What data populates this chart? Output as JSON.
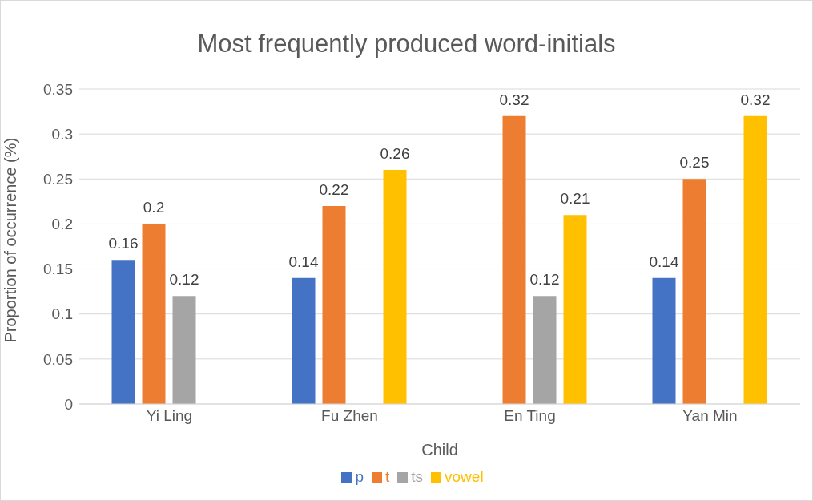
{
  "chart_data": {
    "type": "bar",
    "title": "Most frequently produced word-initials",
    "xlabel": "Child",
    "ylabel": "Proportion of occurrence (%)",
    "categories": [
      "Yi Ling",
      "Fu Zhen",
      "En Ting",
      "Yan Min"
    ],
    "series": [
      {
        "name": "p",
        "color": "#4472c4",
        "values": [
          0.16,
          0.14,
          null,
          0.14
        ]
      },
      {
        "name": "t",
        "color": "#ed7d31",
        "values": [
          0.2,
          0.22,
          0.32,
          0.25
        ]
      },
      {
        "name": "ts",
        "color": "#a5a5a5",
        "values": [
          0.12,
          null,
          0.12,
          null
        ]
      },
      {
        "name": "vowel",
        "color": "#ffc000",
        "values": [
          null,
          0.26,
          0.21,
          0.32
        ]
      }
    ],
    "ylim": [
      0,
      0.35
    ],
    "yticks": [
      0,
      0.05,
      0.1,
      0.15,
      0.2,
      0.25,
      0.3,
      0.35
    ],
    "grid": "y",
    "legend": "bottom",
    "data_labels": true
  }
}
